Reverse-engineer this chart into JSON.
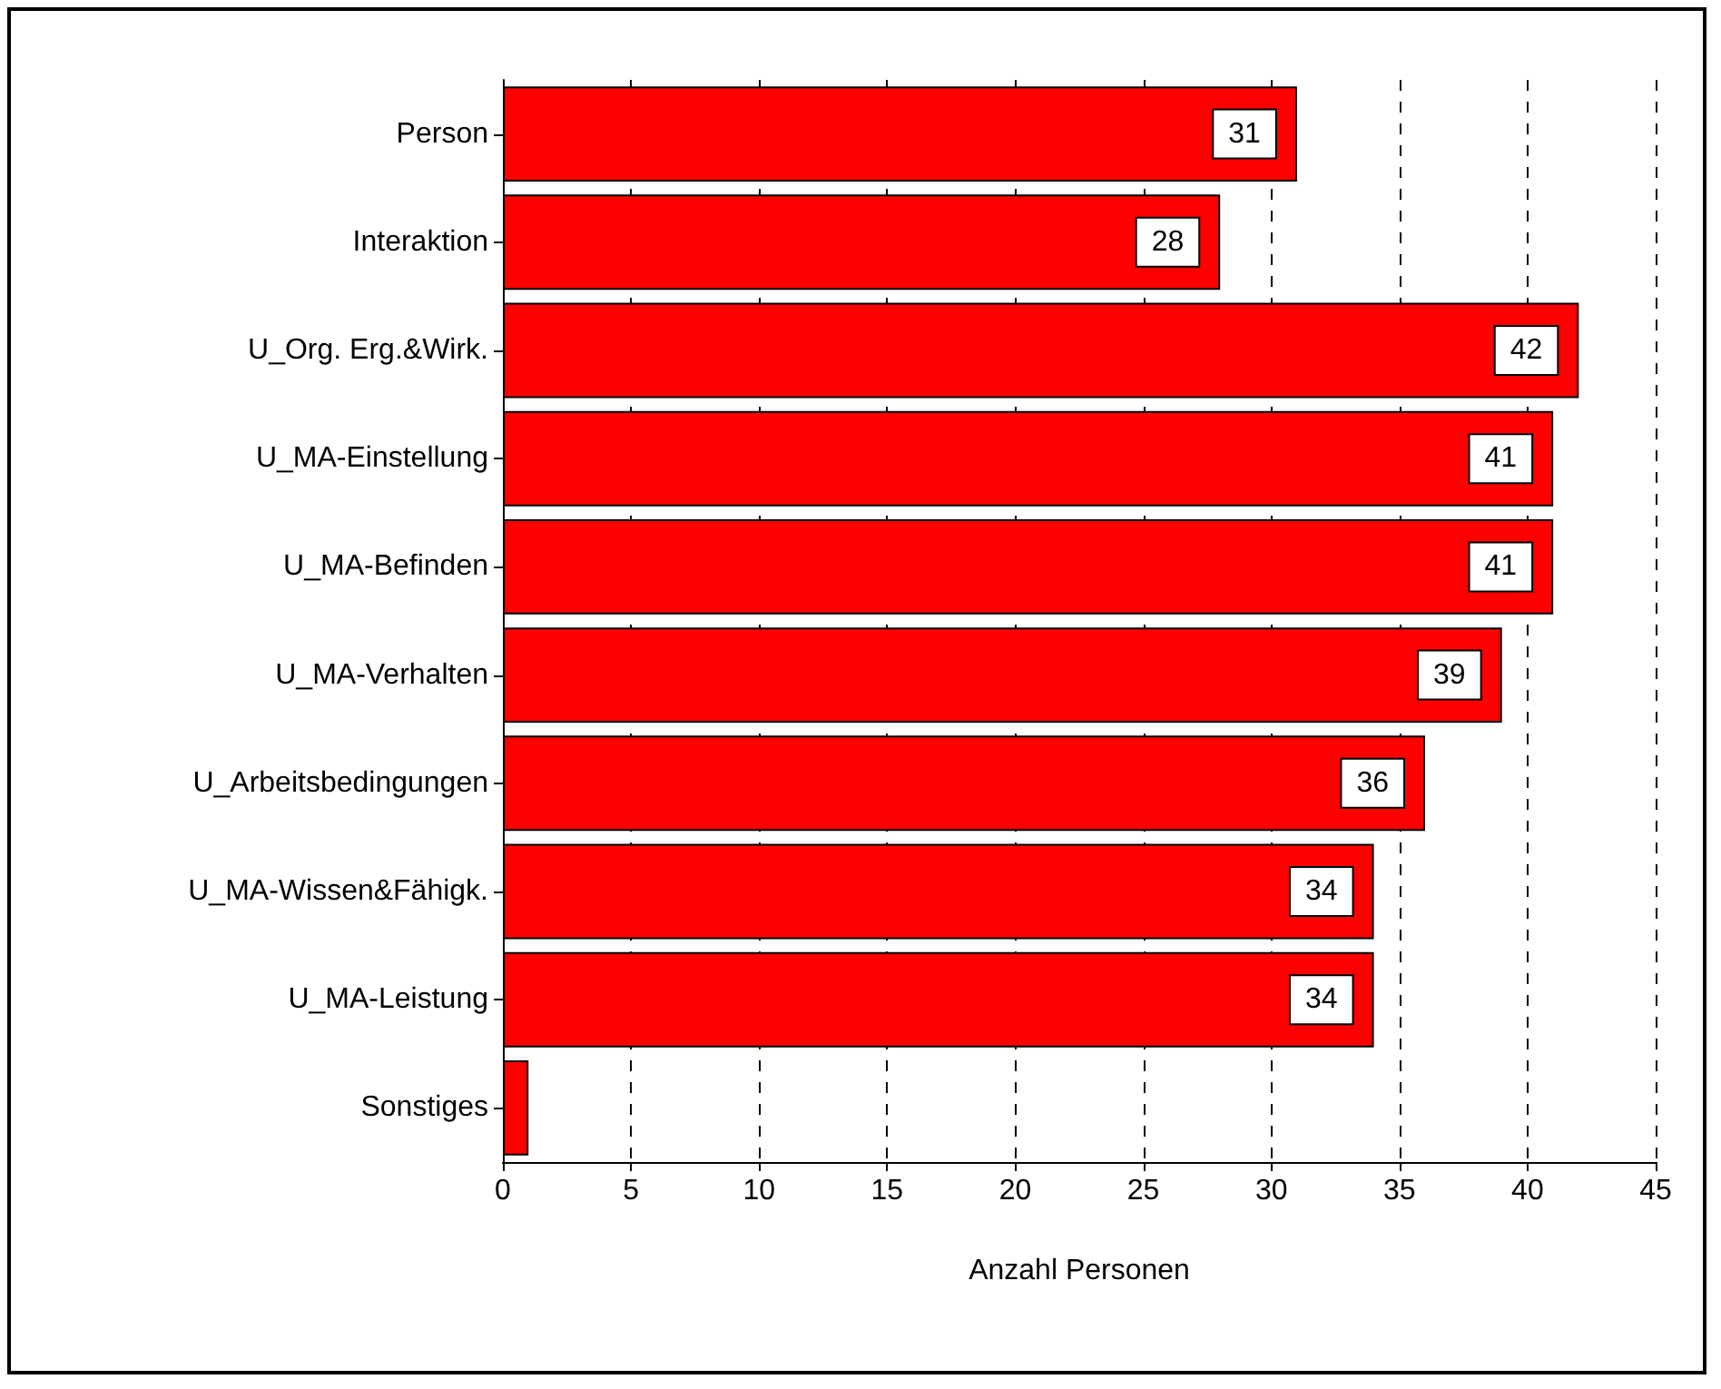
{
  "chart_data": {
    "type": "bar",
    "orientation": "horizontal",
    "xlabel": "Anzahl Personen",
    "categories": [
      "Person",
      "Interaktion",
      "U_Org. Erg.&Wirk.",
      "U_MA-Einstellung",
      "U_MA-Befinden",
      "U_MA-Verhalten",
      "U_Arbeitsbedingungen",
      "U_MA-Wissen&Fähigk.",
      "U_MA-Leistung",
      "Sonstiges"
    ],
    "values": [
      31,
      28,
      42,
      41,
      41,
      39,
      36,
      34,
      34,
      1
    ],
    "value_labels": [
      "31",
      "28",
      "42",
      "41",
      "41",
      "39",
      "36",
      "34",
      "34",
      null
    ],
    "color": "#ff0000",
    "xlim": [
      0,
      45
    ],
    "xticks": [
      0,
      5,
      10,
      15,
      20,
      25,
      30,
      35,
      40,
      45
    ],
    "grid": "x"
  }
}
